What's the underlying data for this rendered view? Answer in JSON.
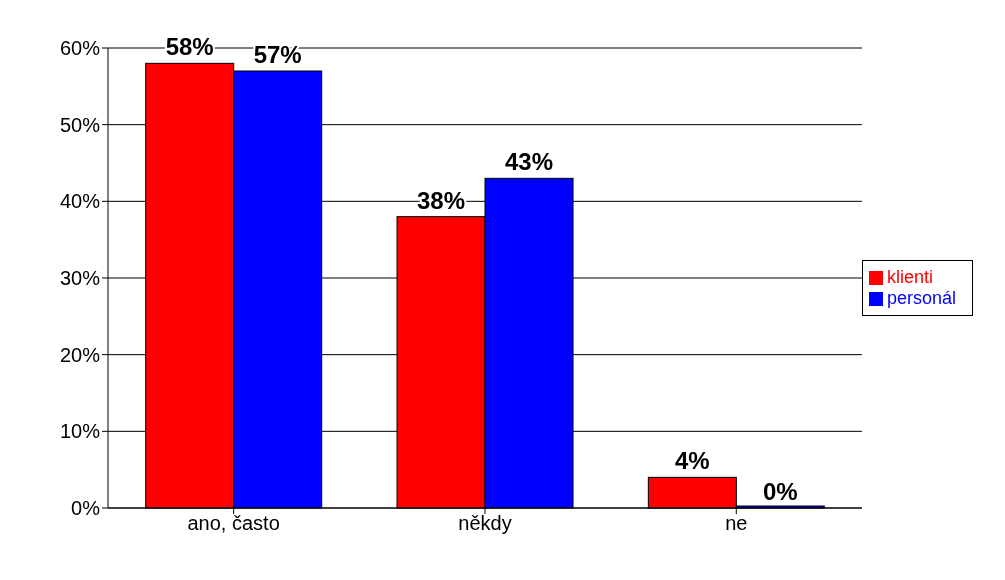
{
  "chart_data": {
    "type": "bar",
    "categories": [
      "ano, často",
      "někdy",
      "ne"
    ],
    "series": [
      {
        "name": "klienti",
        "color": "#ff0000",
        "values": [
          58,
          38,
          4
        ],
        "value_labels": [
          "58%",
          "38%",
          "4%"
        ]
      },
      {
        "name": "personál",
        "color": "#0000ff",
        "values": [
          57,
          43,
          0
        ],
        "value_labels": [
          "57%",
          "43%",
          "0%"
        ]
      }
    ],
    "ylim": [
      0,
      60
    ],
    "yticks": [
      {
        "value": 0,
        "label": "0%"
      },
      {
        "value": 10,
        "label": "10%"
      },
      {
        "value": 20,
        "label": "20%"
      },
      {
        "value": 30,
        "label": "30%"
      },
      {
        "value": 40,
        "label": "40%"
      },
      {
        "value": 50,
        "label": "50%"
      },
      {
        "value": 60,
        "label": "60%"
      }
    ],
    "grid": "y",
    "legend": "right"
  }
}
